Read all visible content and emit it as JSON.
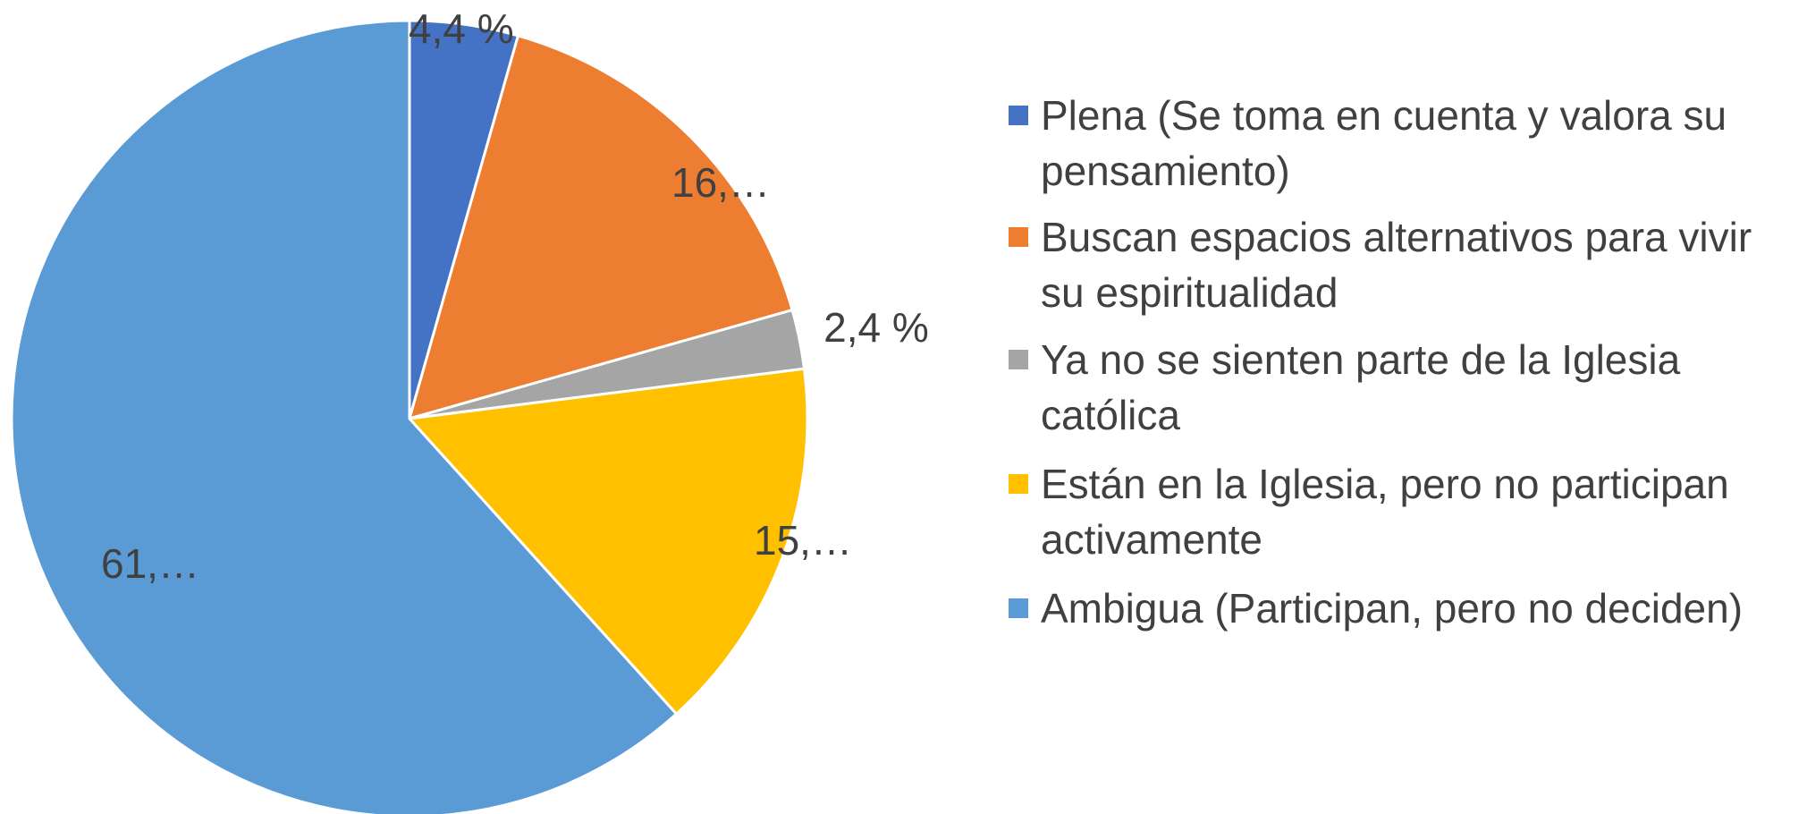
{
  "chart_data": {
    "type": "pie",
    "categories": [
      "Plena (Se toma en cuenta y valora su pensamiento)",
      "Buscan espacios alternativos para vivir su espiritualidad",
      "Ya no se sienten parte de la Iglesia católica",
      "Están en la Iglesia, pero no participan activamente",
      "Ambigua (Participan, pero no deciden)"
    ],
    "values": [
      4.4,
      16.2,
      2.4,
      15.3,
      61.7
    ],
    "value_labels": [
      "4,4 %",
      "16,…",
      "2,4 %",
      "15,…",
      "61,…"
    ],
    "colors": [
      "#4472c4",
      "#ed7d31",
      "#a5a5a5",
      "#ffc000",
      "#5b9bd5"
    ],
    "legend": "right"
  }
}
